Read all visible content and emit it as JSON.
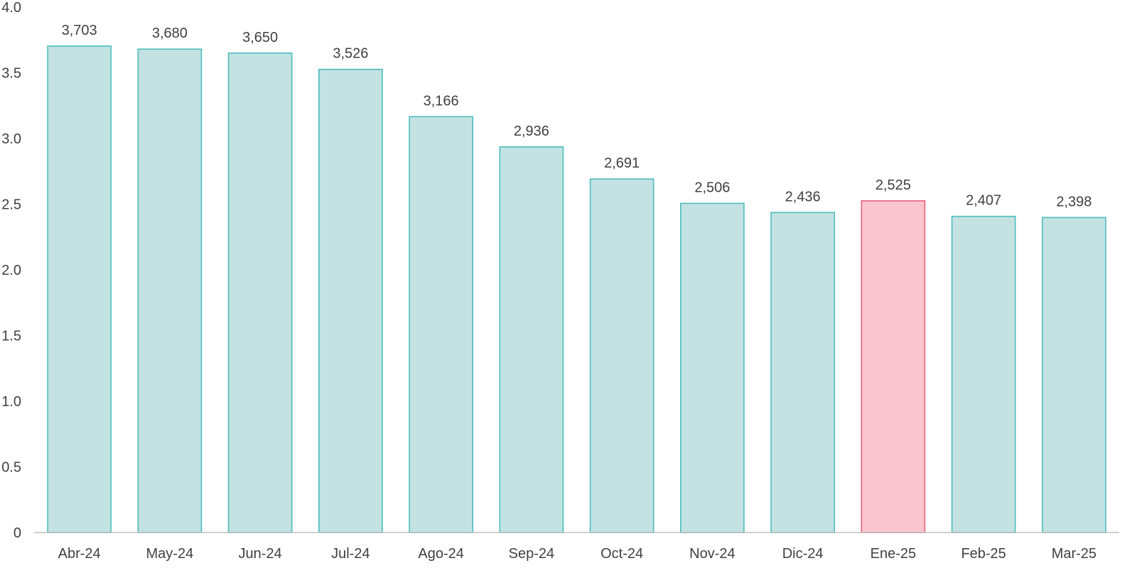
{
  "chart_data": {
    "type": "bar",
    "categories": [
      "Abr-24",
      "May-24",
      "Jun-24",
      "Jul-24",
      "Ago-24",
      "Sep-24",
      "Oct-24",
      "Nov-24",
      "Dic-24",
      "Ene-25",
      "Feb-25",
      "Mar-25"
    ],
    "values": [
      3.703,
      3.68,
      3.65,
      3.526,
      3.166,
      2.936,
      2.691,
      2.506,
      2.436,
      2.525,
      2.407,
      2.398
    ],
    "data_labels": [
      "3,703",
      "3,680",
      "3,650",
      "3,526",
      "3,166",
      "2,936",
      "2,691",
      "2,506",
      "2,436",
      "2,525",
      "2,407",
      "2,398"
    ],
    "y_ticks": [
      0,
      0.5,
      1.0,
      1.5,
      2.0,
      2.5,
      3.0,
      3.5,
      4.0
    ],
    "y_tick_labels": [
      "0",
      "0.5",
      "1.0",
      "1.5",
      "2.0",
      "2.5",
      "3.0",
      "3.5",
      "4.0"
    ],
    "ylim": [
      0,
      4.0
    ],
    "grid": false,
    "legend": "none",
    "highlight_index": 9,
    "colors": {
      "bar_fill": "#c4e2e2",
      "bar_stroke": "#4bbdbd",
      "highlight_fill": "#fbc5cf",
      "highlight_stroke": "#e8607c",
      "axis": "#bfbfbf",
      "text": "#404040"
    }
  }
}
